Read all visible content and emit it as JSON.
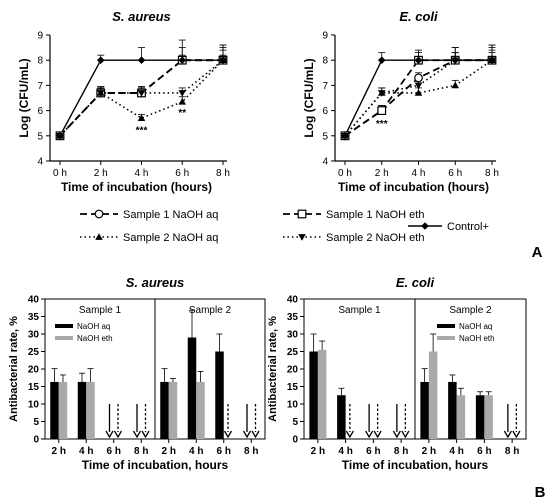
{
  "figure": {
    "panel_labels": [
      "A",
      "B"
    ]
  },
  "chart_data": [
    {
      "panel": "A",
      "type": "line",
      "title": "S. aureus",
      "xlabel": "Time of incubation (hours)",
      "ylabel": "Log (CFU/mL)",
      "categories": [
        "0 h",
        "2 h",
        "4 h",
        "6 h",
        "8 h"
      ],
      "ylim": [
        4,
        9
      ],
      "yticks": [
        4,
        5,
        6,
        7,
        8,
        9
      ],
      "series": [
        {
          "name": "Sample 1 NaOH aq",
          "values": [
            5.0,
            6.7,
            6.7,
            8.0,
            8.0
          ],
          "errors": [
            0,
            0.25,
            0.2,
            0.2,
            0.6
          ]
        },
        {
          "name": "Sample 1 NaOH eth",
          "values": [
            5.0,
            6.7,
            6.7,
            8.0,
            8.0
          ],
          "errors": [
            0,
            0.25,
            0.25,
            0.8,
            0.5
          ]
        },
        {
          "name": "Sample 2 NaOH aq",
          "values": [
            5.0,
            6.7,
            5.7,
            6.35,
            8.0
          ],
          "errors": [
            0,
            0.2,
            0.15,
            0.2,
            0.2
          ]
        },
        {
          "name": "Sample 2 NaOH eth",
          "values": [
            5.0,
            6.7,
            6.7,
            6.7,
            8.0
          ],
          "errors": [
            0,
            0.2,
            0.25,
            0.2,
            0.4
          ]
        },
        {
          "name": "Control+",
          "values": [
            5.0,
            8.0,
            8.0,
            8.0,
            8.0
          ],
          "errors": [
            0,
            0.2,
            0.5,
            0.5,
            0.6
          ]
        }
      ],
      "annotations": [
        {
          "category": "4 h",
          "value": 5.25,
          "text": "***"
        },
        {
          "category": "6 h",
          "value": 5.95,
          "text": "**"
        }
      ]
    },
    {
      "panel": "A",
      "type": "line",
      "title": "E. coli",
      "xlabel": "Time of incubation (hours)",
      "ylabel": "Log (CFU/mL)",
      "categories": [
        "0 h",
        "2 h",
        "4 h",
        "6 h",
        "8 h"
      ],
      "ylim": [
        4,
        9
      ],
      "yticks": [
        4,
        5,
        6,
        7,
        8,
        9
      ],
      "series": [
        {
          "name": "Sample 1 NaOH aq",
          "values": [
            5.0,
            6.0,
            7.3,
            8.0,
            8.0
          ],
          "errors": [
            0,
            0.2,
            0.2,
            0.3,
            0.6
          ]
        },
        {
          "name": "Sample 1 NaOH eth",
          "values": [
            5.0,
            6.0,
            8.0,
            8.0,
            8.0
          ],
          "errors": [
            0,
            0.2,
            0.4,
            0.5,
            0.5
          ]
        },
        {
          "name": "Sample 2 NaOH aq",
          "values": [
            5.0,
            6.7,
            6.7,
            7.0,
            8.0
          ],
          "errors": [
            0,
            0.2,
            0.2,
            0.2,
            0.3
          ]
        },
        {
          "name": "Sample 2 NaOH eth",
          "values": [
            5.0,
            6.7,
            7.0,
            8.0,
            8.0
          ],
          "errors": [
            0,
            0.2,
            0.2,
            0.3,
            0.4
          ]
        },
        {
          "name": "Control+",
          "values": [
            5.0,
            8.0,
            8.0,
            8.0,
            8.0
          ],
          "errors": [
            0,
            0.3,
            0.3,
            0.5,
            0.6
          ]
        }
      ],
      "annotations": [
        {
          "category": "2 h",
          "value": 5.5,
          "text": "***"
        }
      ]
    },
    {
      "panel": "B",
      "type": "bar",
      "title": "S. aureus",
      "xlabel": "Time of incubation, hours",
      "ylabel": "Antibacterial rate, %",
      "ylim": [
        0,
        40
      ],
      "yticks": [
        0,
        5,
        10,
        15,
        20,
        25,
        30,
        35,
        40
      ],
      "groups": [
        "Sample 1",
        "Sample 2"
      ],
      "categories": [
        "2 h",
        "4 h",
        "6 h",
        "8 h"
      ],
      "legend": [
        "NaOH aq",
        "NaOH eth"
      ],
      "legend_position": "top-left",
      "series": [
        {
          "name": "NaOH aq",
          "group": "Sample 1",
          "values": [
            16.3,
            16.3,
            0,
            0
          ],
          "errors": [
            3.8,
            2.5,
            0,
            0
          ]
        },
        {
          "name": "NaOH eth",
          "group": "Sample 1",
          "values": [
            16.3,
            16.3,
            0,
            0
          ],
          "errors": [
            2.0,
            3.8,
            0,
            0
          ]
        },
        {
          "name": "NaOH aq",
          "group": "Sample 2",
          "values": [
            16.3,
            29.0,
            25.0,
            0
          ],
          "errors": [
            3.8,
            7.8,
            5.0,
            0
          ]
        },
        {
          "name": "NaOH eth",
          "group": "Sample 2",
          "values": [
            16.3,
            16.3,
            0,
            0
          ],
          "errors": [
            1.0,
            3.0,
            0,
            0
          ]
        }
      ]
    },
    {
      "panel": "B",
      "type": "bar",
      "title": "E. coli",
      "xlabel": "Time of incubation, hours",
      "ylabel": "Antibacterial rate, %",
      "ylim": [
        0,
        40
      ],
      "yticks": [
        0,
        5,
        10,
        15,
        20,
        25,
        30,
        35,
        40
      ],
      "groups": [
        "Sample 1",
        "Sample 2"
      ],
      "categories": [
        "2 h",
        "4 h",
        "6 h",
        "8 h"
      ],
      "legend": [
        "NaOH aq",
        "NaOH eth"
      ],
      "legend_position": "top-right",
      "series": [
        {
          "name": "NaOH aq",
          "group": "Sample 1",
          "values": [
            25.0,
            12.5,
            0,
            0
          ],
          "errors": [
            5.0,
            2.0,
            0,
            0
          ]
        },
        {
          "name": "NaOH eth",
          "group": "Sample 1",
          "values": [
            25.5,
            0,
            0,
            0
          ],
          "errors": [
            2.5,
            0,
            0,
            0
          ]
        },
        {
          "name": "NaOH aq",
          "group": "Sample 2",
          "values": [
            16.3,
            16.3,
            12.5,
            0
          ],
          "errors": [
            3.8,
            2.0,
            1.0,
            0
          ]
        },
        {
          "name": "NaOH eth",
          "group": "Sample 2",
          "values": [
            25.0,
            12.5,
            12.5,
            0
          ],
          "errors": [
            5.0,
            2.0,
            1.0,
            0
          ]
        }
      ]
    }
  ]
}
